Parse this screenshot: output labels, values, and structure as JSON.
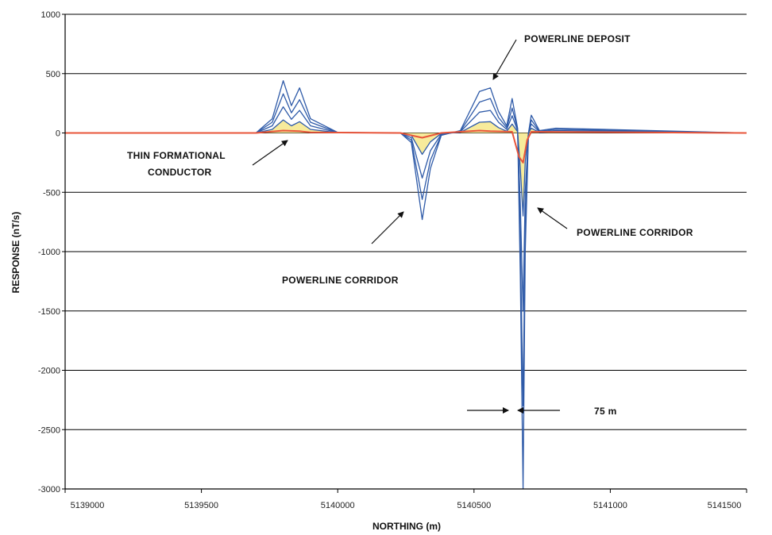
{
  "chart_data": {
    "type": "line",
    "title": "",
    "xlabel": "NORTHING (m)",
    "ylabel": "RESPONSE (nT/s)",
    "xlim": [
      5139000,
      5141500
    ],
    "ylim": [
      -3000,
      1000
    ],
    "x_ticks": [
      5139000,
      5139500,
      5140000,
      5140500,
      5141000,
      5141500
    ],
    "x_tick_labels": [
      "5139000",
      "5139500",
      "5140000",
      "5140500",
      "5141000",
      "5141500"
    ],
    "y_ticks": [
      1000,
      500,
      0,
      -500,
      -1000,
      -1500,
      -2000,
      -2500,
      -3000
    ],
    "y_tick_labels": [
      "1000",
      "500",
      "0",
      "-500",
      "-1000",
      "-1500",
      "-2000",
      "-2500",
      "-3000"
    ],
    "grid": "horizontal",
    "legend": "none",
    "colors": {
      "early_channels": "#2e5aa8",
      "late_channels": "#e8553a",
      "fill": "#f6e88a",
      "grid": "#000000"
    },
    "series": [
      {
        "values": [
          [
            5139000,
            0
          ],
          [
            5139700,
            0
          ],
          [
            5139760,
            120
          ],
          [
            5139800,
            440
          ],
          [
            5139830,
            230
          ],
          [
            5139860,
            380
          ],
          [
            5139900,
            120
          ],
          [
            5140000,
            5
          ],
          [
            5140230,
            0
          ],
          [
            5140270,
            -80
          ],
          [
            5140310,
            -730
          ],
          [
            5140340,
            -300
          ],
          [
            5140380,
            -20
          ],
          [
            5140450,
            20
          ],
          [
            5140520,
            350
          ],
          [
            5140560,
            380
          ],
          [
            5140590,
            180
          ],
          [
            5140620,
            60
          ],
          [
            5140640,
            290
          ],
          [
            5140660,
            40
          ],
          [
            5140670,
            -1200
          ],
          [
            5140680,
            -3000
          ],
          [
            5140688,
            -1000
          ],
          [
            5140700,
            0
          ],
          [
            5140710,
            150
          ],
          [
            5140740,
            20
          ],
          [
            5140800,
            40
          ],
          [
            5141500,
            0
          ]
        ]
      },
      {
        "values": [
          [
            5139000,
            0
          ],
          [
            5139700,
            0
          ],
          [
            5139760,
            90
          ],
          [
            5139800,
            330
          ],
          [
            5139830,
            170
          ],
          [
            5139860,
            280
          ],
          [
            5139900,
            90
          ],
          [
            5140000,
            4
          ],
          [
            5140230,
            0
          ],
          [
            5140270,
            -60
          ],
          [
            5140310,
            -560
          ],
          [
            5140340,
            -230
          ],
          [
            5140380,
            -15
          ],
          [
            5140450,
            15
          ],
          [
            5140520,
            260
          ],
          [
            5140560,
            290
          ],
          [
            5140590,
            130
          ],
          [
            5140620,
            45
          ],
          [
            5140640,
            210
          ],
          [
            5140660,
            30
          ],
          [
            5140670,
            -900
          ],
          [
            5140680,
            -2300
          ],
          [
            5140688,
            -760
          ],
          [
            5140700,
            0
          ],
          [
            5140710,
            110
          ],
          [
            5140740,
            15
          ],
          [
            5140800,
            30
          ],
          [
            5141500,
            0
          ]
        ]
      },
      {
        "values": [
          [
            5139000,
            0
          ],
          [
            5139700,
            0
          ],
          [
            5139760,
            60
          ],
          [
            5139800,
            220
          ],
          [
            5139830,
            115
          ],
          [
            5139860,
            190
          ],
          [
            5139900,
            60
          ],
          [
            5140000,
            3
          ],
          [
            5140230,
            0
          ],
          [
            5140270,
            -40
          ],
          [
            5140310,
            -380
          ],
          [
            5140340,
            -150
          ],
          [
            5140380,
            -10
          ],
          [
            5140450,
            10
          ],
          [
            5140520,
            175
          ],
          [
            5140560,
            190
          ],
          [
            5140590,
            90
          ],
          [
            5140620,
            30
          ],
          [
            5140640,
            145
          ],
          [
            5140660,
            20
          ],
          [
            5140670,
            -600
          ],
          [
            5140680,
            -1500
          ],
          [
            5140688,
            -500
          ],
          [
            5140700,
            0
          ],
          [
            5140710,
            75
          ],
          [
            5140740,
            10
          ],
          [
            5140800,
            20
          ],
          [
            5141500,
            0
          ]
        ]
      },
      {
        "values": [
          [
            5139000,
            0
          ],
          [
            5139700,
            0
          ],
          [
            5139760,
            30
          ],
          [
            5139800,
            110
          ],
          [
            5139830,
            60
          ],
          [
            5139860,
            95
          ],
          [
            5139900,
            30
          ],
          [
            5140000,
            2
          ],
          [
            5140230,
            0
          ],
          [
            5140270,
            -20
          ],
          [
            5140310,
            -180
          ],
          [
            5140340,
            -75
          ],
          [
            5140380,
            -5
          ],
          [
            5140450,
            5
          ],
          [
            5140520,
            90
          ],
          [
            5140560,
            95
          ],
          [
            5140590,
            45
          ],
          [
            5140620,
            15
          ],
          [
            5140640,
            75
          ],
          [
            5140660,
            10
          ],
          [
            5140670,
            -300
          ],
          [
            5140680,
            -700
          ],
          [
            5140688,
            -240
          ],
          [
            5140700,
            0
          ],
          [
            5140710,
            40
          ],
          [
            5140740,
            5
          ],
          [
            5140800,
            10
          ],
          [
            5141500,
            0
          ]
        ]
      },
      {
        "values": [
          [
            5139000,
            0
          ],
          [
            5139700,
            0
          ],
          [
            5139800,
            20
          ],
          [
            5139860,
            15
          ],
          [
            5139900,
            5
          ],
          [
            5140230,
            0
          ],
          [
            5140310,
            -40
          ],
          [
            5140380,
            0
          ],
          [
            5140520,
            20
          ],
          [
            5140560,
            15
          ],
          [
            5140640,
            10
          ],
          [
            5140665,
            -200
          ],
          [
            5140680,
            -250
          ],
          [
            5140695,
            -60
          ],
          [
            5140710,
            10
          ],
          [
            5141500,
            0
          ]
        ]
      }
    ]
  },
  "annotations": {
    "powerline_deposit": "POWERLINE DEPOSIT",
    "thin_formational_1": "THIN FORMATIONAL",
    "thin_formational_2": "CONDUCTOR",
    "powerline_corridor_left": "POWERLINE CORRIDOR",
    "powerline_corridor_right": "POWERLINE CORRIDOR",
    "width_75m": "75 m"
  }
}
